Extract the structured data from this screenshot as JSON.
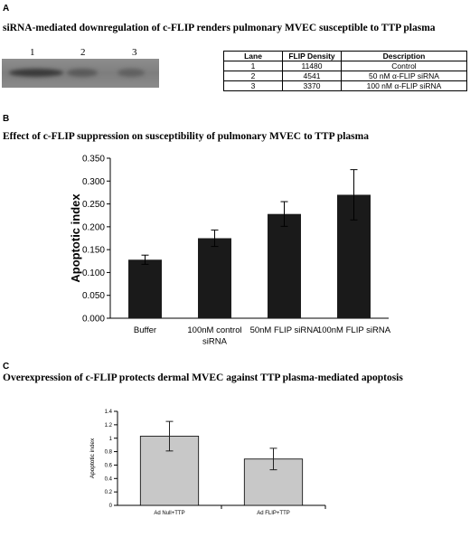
{
  "panel_a": {
    "letter": "A",
    "title": "siRNA-mediated downregulation of c-FLIP renders pulmonary MVEC susceptible to TTP plasma",
    "lane_labels": [
      "1",
      "2",
      "3"
    ],
    "table": {
      "headers": [
        "Lane",
        "FLIP Density",
        "Description"
      ],
      "rows": [
        [
          "1",
          "11480",
          "Control"
        ],
        [
          "2",
          "4541",
          "50 nM α-FLIP siRNA"
        ],
        [
          "3",
          "3370",
          "100 nM α-FLIP siRNA"
        ]
      ]
    }
  },
  "panel_b": {
    "letter": "B",
    "title": "Effect of c-FLIP suppression on susceptibility of pulmonary MVEC to TTP plasma"
  },
  "panel_c": {
    "letter": "C",
    "title": "Overexpression of c-FLIP protects dermal MVEC against TTP plasma-mediated apoptosis"
  },
  "colors": {
    "bar_b": "#1a1a1a",
    "bar_c": "#c8c8c8",
    "axis": "#000000"
  },
  "chart_data": [
    {
      "type": "bar",
      "categories": [
        "Buffer",
        "100nM control siRNA",
        "50nM FLIP siRNA",
        "100nM FLIP siRNA"
      ],
      "category_lines": [
        [
          "Buffer"
        ],
        [
          "100nM control",
          "siRNA"
        ],
        [
          "50nM FLIP siRNA"
        ],
        [
          "100nM FLIP siRNA"
        ]
      ],
      "values": [
        0.128,
        0.175,
        0.228,
        0.27
      ],
      "errors": [
        0.01,
        0.018,
        0.027,
        0.055
      ],
      "ylabel": "Apoptotic index",
      "ylim": [
        0,
        0.35
      ],
      "yticks": [
        "0.000",
        "0.050",
        "0.100",
        "0.150",
        "0.200",
        "0.250",
        "0.300",
        "0.350"
      ],
      "grid": false
    },
    {
      "type": "bar",
      "categories": [
        "Ad Null+TTP",
        "Ad FLIP+TTP"
      ],
      "values": [
        1.03,
        0.69
      ],
      "errors": [
        0.22,
        0.16
      ],
      "ylabel": "Apoptotic index",
      "ylim": [
        0,
        1.4
      ],
      "yticks": [
        "0",
        "0.2",
        "0.4",
        "0.6",
        "0.8",
        "1",
        "1.2",
        "1.4"
      ],
      "grid": false
    }
  ]
}
